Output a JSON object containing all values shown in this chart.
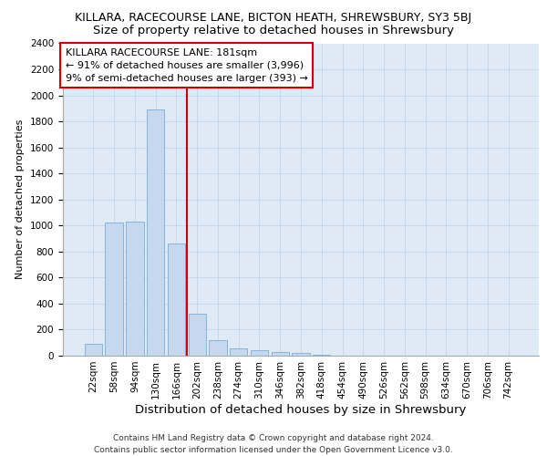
{
  "title1": "KILLARA, RACECOURSE LANE, BICTON HEATH, SHREWSBURY, SY3 5BJ",
  "title2": "Size of property relative to detached houses in Shrewsbury",
  "xlabel": "Distribution of detached houses by size in Shrewsbury",
  "ylabel": "Number of detached properties",
  "categories": [
    "22sqm",
    "58sqm",
    "94sqm",
    "130sqm",
    "166sqm",
    "202sqm",
    "238sqm",
    "274sqm",
    "310sqm",
    "346sqm",
    "382sqm",
    "418sqm",
    "454sqm",
    "490sqm",
    "526sqm",
    "562sqm",
    "598sqm",
    "634sqm",
    "670sqm",
    "706sqm",
    "742sqm"
  ],
  "values": [
    90,
    1020,
    1030,
    1890,
    860,
    320,
    120,
    55,
    45,
    30,
    20,
    5,
    0,
    0,
    0,
    0,
    0,
    0,
    0,
    0,
    0
  ],
  "bar_color": "#c5d8ee",
  "bar_edge_color": "#7aadd4",
  "vline_color": "#cc0000",
  "vline_pos": 4.5,
  "annotation_text": "KILLARA RACECOURSE LANE: 181sqm\n← 91% of detached houses are smaller (3,996)\n9% of semi-detached houses are larger (393) →",
  "annotation_box_color": "#cc0000",
  "ylim": [
    0,
    2400
  ],
  "yticks": [
    0,
    200,
    400,
    600,
    800,
    1000,
    1200,
    1400,
    1600,
    1800,
    2000,
    2200,
    2400
  ],
  "grid_color": "#c8d8ea",
  "bg_color": "#deeaf6",
  "footnote": "Contains HM Land Registry data © Crown copyright and database right 2024.\nContains public sector information licensed under the Open Government Licence v3.0.",
  "title1_fontsize": 9,
  "title2_fontsize": 9.5,
  "xlabel_fontsize": 9.5,
  "ylabel_fontsize": 8,
  "tick_fontsize": 7.5,
  "annot_fontsize": 8,
  "footnote_fontsize": 6.5
}
